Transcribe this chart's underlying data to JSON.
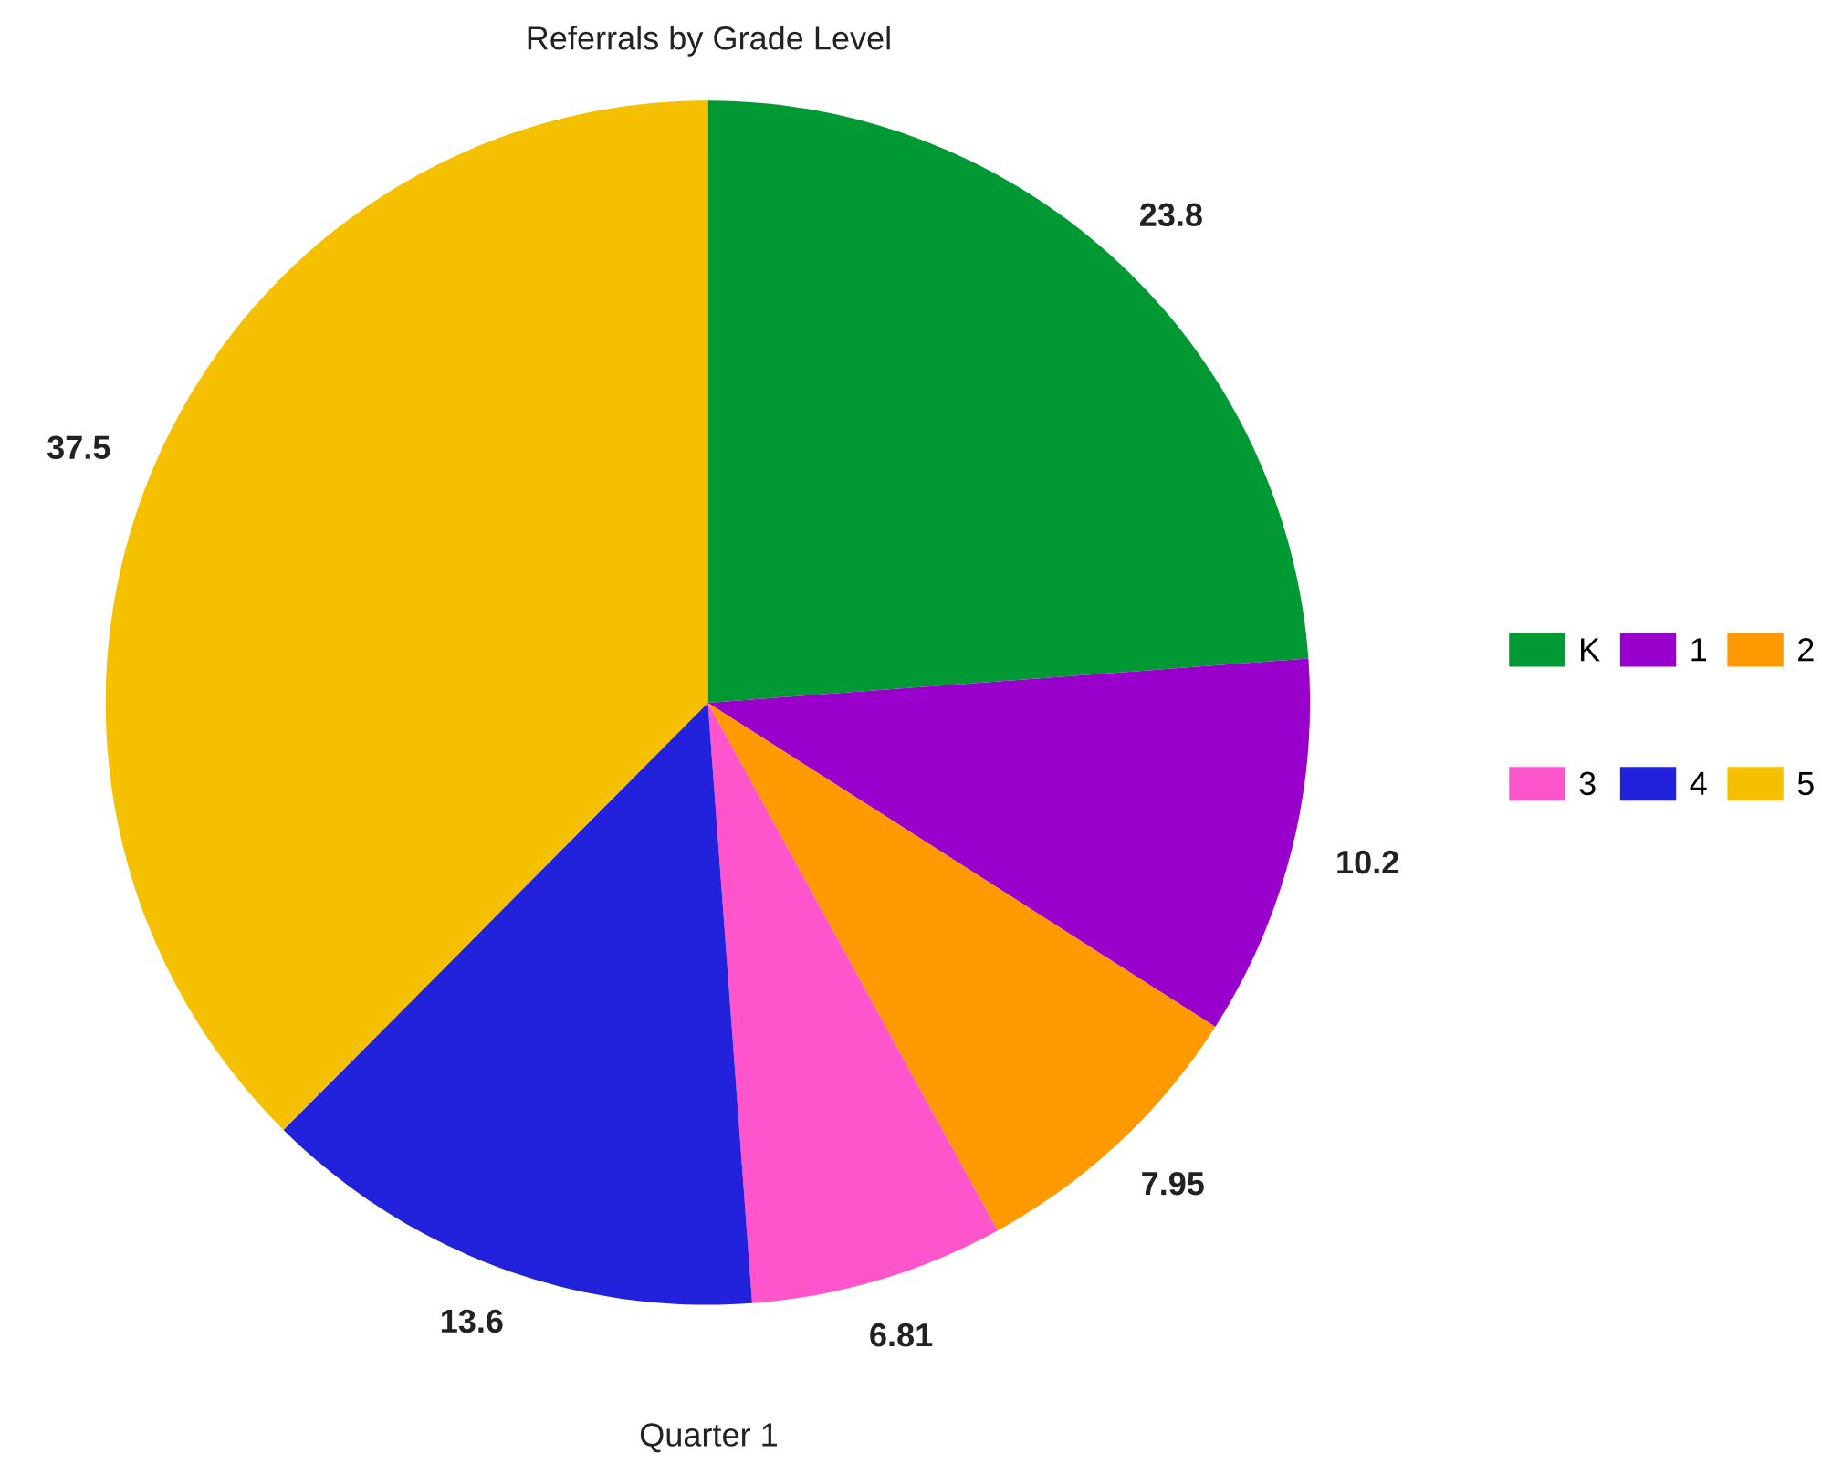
{
  "chart_data": {
    "type": "pie",
    "title": "Referrals by Grade Level",
    "xlabel": "Quarter 1",
    "categories": [
      "K",
      "1",
      "2",
      "3",
      "4",
      "5"
    ],
    "values": [
      23.8,
      10.2,
      7.95,
      6.81,
      13.6,
      37.5
    ],
    "colors": [
      "#009933",
      "#9900cc",
      "#ff9900",
      "#ff55cc",
      "#2222dd",
      "#f5c000"
    ],
    "data_labels": true,
    "legend": "right"
  }
}
